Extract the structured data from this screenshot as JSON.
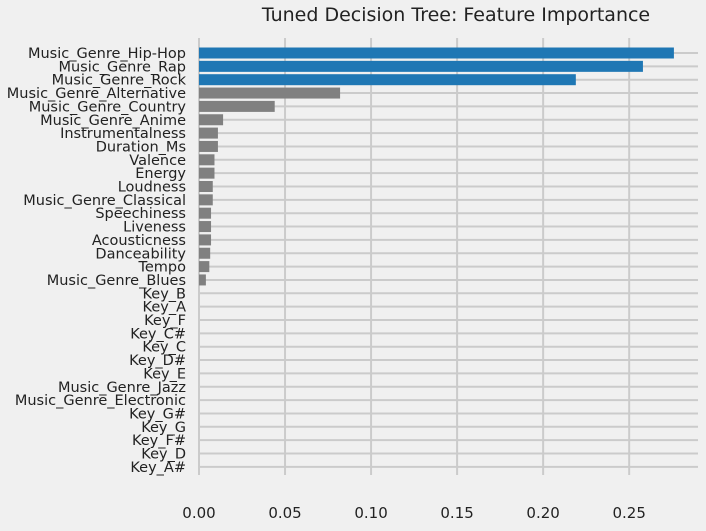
{
  "chart_data": {
    "type": "bar",
    "orientation": "horizontal",
    "title": "Tuned Decision Tree: Feature Importance",
    "xlabel": "",
    "ylabel": "",
    "xlim": [
      0,
      0.29
    ],
    "x_ticks": [
      0.0,
      0.05,
      0.1,
      0.15,
      0.2,
      0.25
    ],
    "x_tick_labels": [
      "0.00",
      "0.05",
      "0.10",
      "0.15",
      "0.20",
      "0.25"
    ],
    "grid": true,
    "categories": [
      "Music_Genre_Hip-Hop",
      "Music_Genre_Rap",
      "Music_Genre_Rock",
      "Music_Genre_Alternative",
      "Music_Genre_Country",
      "Music_Genre_Anime",
      "Instrumentalness",
      "Duration_Ms",
      "Valence",
      "Energy",
      "Loudness",
      "Music_Genre_Classical",
      "Speechiness",
      "Liveness",
      "Acousticness",
      "Danceability",
      "Tempo",
      "Music_Genre_Blues",
      "Key_B",
      "Key_A",
      "Key_F",
      "Key_C#",
      "Key_C",
      "Key_D#",
      "Key_E",
      "Music_Genre_Jazz",
      "Music_Genre_Electronic",
      "Key_G#",
      "Key_G",
      "Key_F#",
      "Key_D",
      "Key_A#"
    ],
    "values": [
      0.276,
      0.258,
      0.219,
      0.082,
      0.044,
      0.014,
      0.011,
      0.011,
      0.009,
      0.009,
      0.008,
      0.008,
      0.007,
      0.007,
      0.007,
      0.0065,
      0.006,
      0.004,
      0,
      0,
      0,
      0,
      0,
      0,
      0,
      0,
      0,
      0,
      0,
      0,
      0,
      0
    ],
    "bar_colors": [
      "#1f77b4",
      "#1f77b4",
      "#1f77b4",
      "#808080",
      "#808080",
      "#808080",
      "#808080",
      "#808080",
      "#808080",
      "#808080",
      "#808080",
      "#808080",
      "#808080",
      "#808080",
      "#808080",
      "#808080",
      "#808080",
      "#808080",
      "#808080",
      "#808080",
      "#808080",
      "#808080",
      "#808080",
      "#808080",
      "#808080",
      "#808080",
      "#808080",
      "#808080",
      "#808080",
      "#808080",
      "#808080",
      "#808080"
    ]
  },
  "colors": {
    "background": "#f0f0f0",
    "grid": "#cbcbcb",
    "text": "#222222",
    "highlight": "#1f77b4",
    "other": "#808080"
  }
}
